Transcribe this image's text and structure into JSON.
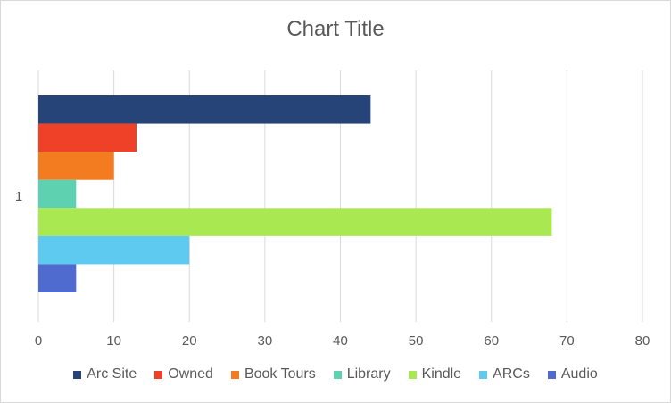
{
  "chart_data": {
    "type": "bar",
    "orientation": "horizontal",
    "title": "Chart Title",
    "categories": [
      "1"
    ],
    "series": [
      {
        "name": "Arc Site",
        "values": [
          44
        ],
        "color": "#264478"
      },
      {
        "name": "Owned",
        "values": [
          13
        ],
        "color": "#ee4127"
      },
      {
        "name": "Book Tours",
        "values": [
          10
        ],
        "color": "#f47c20"
      },
      {
        "name": "Library",
        "values": [
          5
        ],
        "color": "#5dd1b0"
      },
      {
        "name": "Kindle",
        "values": [
          68
        ],
        "color": "#a9e851"
      },
      {
        "name": "ARCs",
        "values": [
          20
        ],
        "color": "#5fcaf0"
      },
      {
        "name": "Audio",
        "values": [
          5
        ],
        "color": "#4f6bd0"
      }
    ],
    "xlim": [
      0,
      80
    ],
    "x_ticks": [
      "0",
      "10",
      "20",
      "30",
      "40",
      "50",
      "60",
      "70",
      "80"
    ],
    "grid": true,
    "legend": "bottom"
  }
}
